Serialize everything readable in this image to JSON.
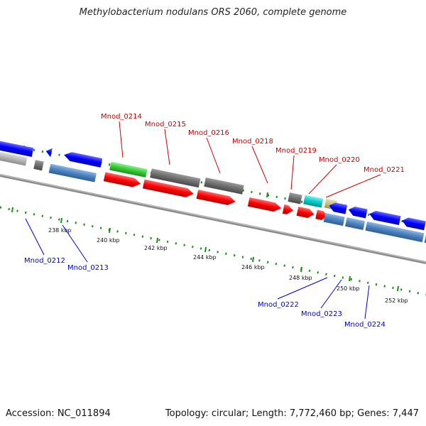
{
  "title": "Methylobacterium nodulans ORS 2060, complete genome",
  "accession": "Accession: NC_011894",
  "summary": "Topology: circular; Length: 7,772,460 bp; Genes: 7,447",
  "scale_labels": [
    "238 kbp",
    "240 kbp",
    "242 kbp",
    "244 kbp",
    "246 kbp",
    "248 kbp",
    "250 kbp",
    "252 kbp"
  ],
  "gene_labels_top": [
    "Mnod_0214",
    "Mnod_0215",
    "Mnod_0216",
    "Mnod_0218",
    "Mnod_0219",
    "Mnod_0220",
    "Mnod_0221"
  ],
  "gene_labels_bottom": [
    "Mnod_0212",
    "Mnod_0213",
    "Mnod_0222",
    "Mnod_0223",
    "Mnod_0224"
  ],
  "colors": {
    "gc_skew": "#1a8a1a",
    "backbone": "#8c8c8c",
    "red_gene": "#ff0000",
    "gray_gene": "#6e6e6e",
    "green_gene": "#33cc33",
    "cyan_gene": "#00cccc",
    "tan_gene": "#c8bf80",
    "blue_gene": "#0000ff",
    "steel_gene": "#4a82bf",
    "light_gray_gene": "#b4b4b4",
    "top_label": "#cc0000",
    "bottom_label": "#0000cc"
  }
}
